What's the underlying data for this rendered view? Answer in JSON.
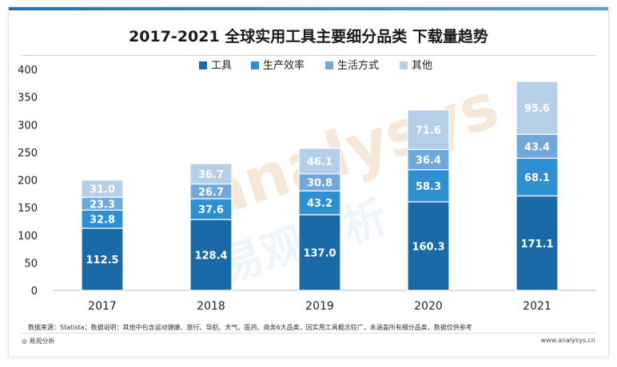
{
  "chart_data": {
    "type": "stacked-bar",
    "title": "2017-2021 全球实用工具主要细分品类 下载量趋势",
    "categories": [
      "2017",
      "2018",
      "2019",
      "2020",
      "2021"
    ],
    "series": [
      {
        "name": "工具",
        "color": "#1a6aa8",
        "values": [
          112.5,
          128.4,
          137.0,
          160.3,
          171.1
        ]
      },
      {
        "name": "生产效率",
        "color": "#2e8fd1",
        "values": [
          32.8,
          37.6,
          43.2,
          58.3,
          68.1
        ]
      },
      {
        "name": "生活方式",
        "color": "#6ea8dc",
        "values": [
          23.3,
          26.7,
          30.8,
          36.4,
          43.4
        ]
      },
      {
        "name": "其他",
        "color": "#b5cfe9",
        "values": [
          31.0,
          36.7,
          46.1,
          71.6,
          95.6
        ]
      }
    ],
    "ylim": [
      0,
      400
    ],
    "yticks": [
      0,
      50,
      100,
      150,
      200,
      250,
      300,
      350,
      400
    ],
    "legend_position": "top"
  },
  "footnote": "数据来源：Statista；数据说明：其他中包含运动健康、旅行、导航、天气、医药、商务6大品类，因实用工具概念较广，未涵盖所有细分品类，数据仅供参考",
  "brand": {
    "left": "易观分析",
    "right": "www.analysys.cn",
    "watermark_text": "analysys",
    "watermark_cn": "易观分析"
  }
}
